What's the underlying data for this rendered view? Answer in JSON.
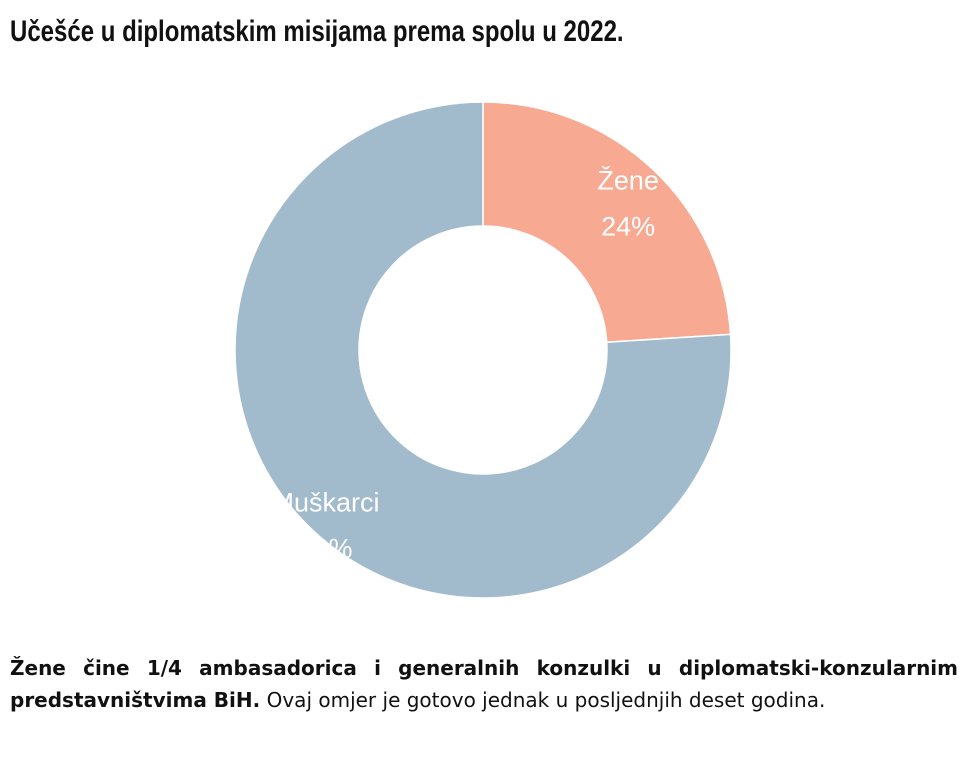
{
  "title": "Učešće u diplomatskim misijama prema spolu u 2022.",
  "chart_data": {
    "type": "pie",
    "donut": true,
    "title": "Učešće u diplomatskim misijama prema spolu u 2022.",
    "series": [
      {
        "name": "Žene",
        "value": 24,
        "value_label": "24%",
        "color": "#f7a992"
      },
      {
        "name": "Muškarci",
        "value": 76,
        "value_label": "76%",
        "color": "#a1bbcd"
      }
    ],
    "start": "top",
    "direction": "clockwise",
    "legend": "none"
  },
  "caption": {
    "bold": "Žene čine 1/4 ambasadorica i generalnih konzulki u diplomatski-konzularnim predstavništvima BiH.",
    "normal": " Ovaj omjer je gotovo jednak u posljednjih deset godina."
  }
}
